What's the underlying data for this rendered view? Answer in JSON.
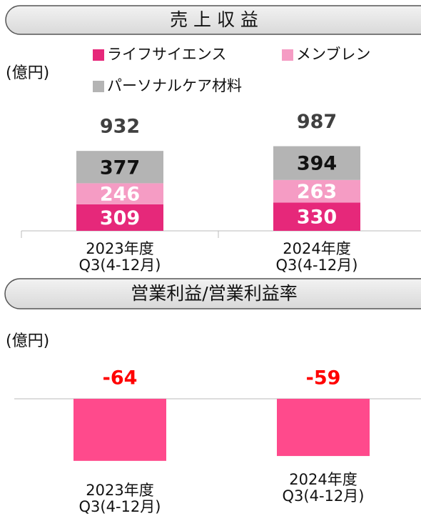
{
  "chart_data": [
    {
      "type": "stacked-bar",
      "title": "売 上 収 益",
      "unit_label": "(億円)",
      "categories": [
        "2023年度\nQ3(4-12月)",
        "2024年度\nQ3(4-12月)"
      ],
      "series": [
        {
          "name": "ライフサイエンス",
          "color": "#e6287a",
          "values": [
            309,
            330
          ]
        },
        {
          "name": "メンブレン",
          "color": "#f59cc4",
          "values": [
            246,
            263
          ]
        },
        {
          "name": "パーソナルケア材料",
          "color": "#b4b4b4",
          "values": [
            377,
            394
          ]
        }
      ],
      "totals": [
        932,
        987
      ],
      "ylim": [
        0,
        1000
      ]
    },
    {
      "type": "bar",
      "title": "営業利益/営業利益率",
      "unit_label": "(億円)",
      "categories": [
        "2023年度\nQ3(4-12月)",
        "2024年度\nQ3(4-12月)"
      ],
      "values": [
        -64,
        -59
      ],
      "color": "#ff4a8c",
      "label_color": "#ff0000",
      "ylim": [
        -70,
        0
      ]
    }
  ]
}
